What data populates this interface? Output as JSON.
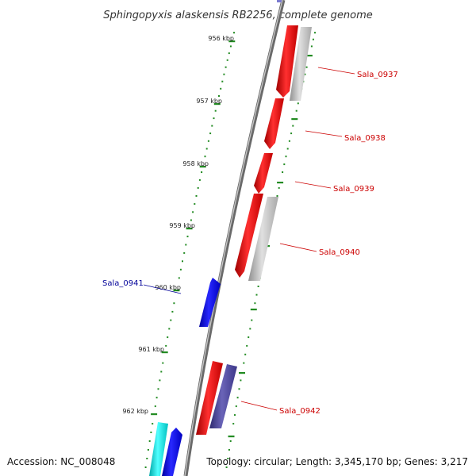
{
  "title": "Sphingopyxis alaskensis RB2256, complete genome",
  "footer": {
    "accession": "Accession: NC_008048",
    "topology": "Topology: circular; Length: 3,345,170 bp; Genes: 3,217"
  },
  "colors": {
    "forward_gene": "#ff0000",
    "reverse_gene": "#0000ff",
    "pseudo_gene": "#b0b0b0",
    "other_gene": "#4b4494",
    "cyan_gene": "#00e5e5",
    "tick": "#228b22",
    "backbone": "#808080",
    "label_red": "#cc0000",
    "label_blue": "#000099"
  },
  "scale_ticks": [
    {
      "label": "956 kbp"
    },
    {
      "label": "957 kbp"
    },
    {
      "label": "958 kbp"
    },
    {
      "label": "959 kbp"
    },
    {
      "label": "960 kbp"
    },
    {
      "label": "961 kbp"
    },
    {
      "label": "962 kbp"
    }
  ],
  "gene_labels": [
    {
      "name": "Sala_0937",
      "color": "red"
    },
    {
      "name": "Sala_0938",
      "color": "red"
    },
    {
      "name": "Sala_0939",
      "color": "red"
    },
    {
      "name": "Sala_0940",
      "color": "red"
    },
    {
      "name": "Sala_0941",
      "color": "blue"
    },
    {
      "name": "Sala_0942",
      "color": "red"
    }
  ]
}
